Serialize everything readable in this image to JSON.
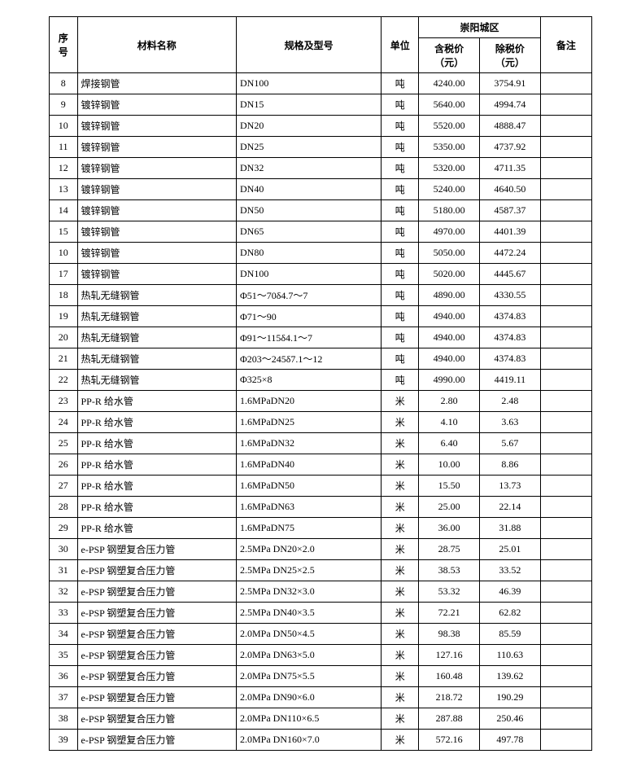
{
  "table": {
    "header": {
      "seq": "序号",
      "material": "材料名称",
      "spec": "规格及型号",
      "unit": "单位",
      "region": "崇阳城区",
      "price_incl": "含税价（元）",
      "price_excl": "除税价（元）",
      "remark": "备注"
    },
    "rows": [
      {
        "seq": "8",
        "name": "焊接钢管",
        "spec": "DN100",
        "unit": "吨",
        "incl": "4240.00",
        "excl": "3754.91",
        "remark": ""
      },
      {
        "seq": "9",
        "name": "镀锌钢管",
        "spec": "DN15",
        "unit": "吨",
        "incl": "5640.00",
        "excl": "4994.74",
        "remark": ""
      },
      {
        "seq": "10",
        "name": "镀锌钢管",
        "spec": "DN20",
        "unit": "吨",
        "incl": "5520.00",
        "excl": "4888.47",
        "remark": ""
      },
      {
        "seq": "11",
        "name": "镀锌钢管",
        "spec": "DN25",
        "unit": "吨",
        "incl": "5350.00",
        "excl": "4737.92",
        "remark": ""
      },
      {
        "seq": "12",
        "name": "镀锌钢管",
        "spec": "DN32",
        "unit": "吨",
        "incl": "5320.00",
        "excl": "4711.35",
        "remark": ""
      },
      {
        "seq": "13",
        "name": "镀锌钢管",
        "spec": "DN40",
        "unit": "吨",
        "incl": "5240.00",
        "excl": "4640.50",
        "remark": ""
      },
      {
        "seq": "14",
        "name": "镀锌钢管",
        "spec": "DN50",
        "unit": "吨",
        "incl": "5180.00",
        "excl": "4587.37",
        "remark": ""
      },
      {
        "seq": "15",
        "name": "镀锌钢管",
        "spec": "DN65",
        "unit": "吨",
        "incl": "4970.00",
        "excl": "4401.39",
        "remark": ""
      },
      {
        "seq": "10",
        "name": "镀锌钢管",
        "spec": "DN80",
        "unit": "吨",
        "incl": "5050.00",
        "excl": "4472.24",
        "remark": ""
      },
      {
        "seq": "17",
        "name": "镀锌钢管",
        "spec": "DN100",
        "unit": "吨",
        "incl": "5020.00",
        "excl": "4445.67",
        "remark": ""
      },
      {
        "seq": "18",
        "name": "热轧无缝钢管",
        "spec": "Φ51～70δ4.7～7",
        "unit": "吨",
        "incl": "4890.00",
        "excl": "4330.55",
        "remark": ""
      },
      {
        "seq": "19",
        "name": "热轧无缝钢管",
        "spec": "Φ71～90",
        "unit": "吨",
        "incl": "4940.00",
        "excl": "4374.83",
        "remark": ""
      },
      {
        "seq": "20",
        "name": "热轧无缝钢管",
        "spec": "Φ91～115δ4.1～7",
        "unit": "吨",
        "incl": "4940.00",
        "excl": "4374.83",
        "remark": ""
      },
      {
        "seq": "21",
        "name": "热轧无缝钢管",
        "spec": "Φ203～245δ7.1～12",
        "unit": "吨",
        "incl": "4940.00",
        "excl": "4374.83",
        "remark": ""
      },
      {
        "seq": "22",
        "name": "热轧无缝钢管",
        "spec": "Φ325×8",
        "unit": "吨",
        "incl": "4990.00",
        "excl": "4419.11",
        "remark": ""
      },
      {
        "seq": "23",
        "name": "PP-R 给水管",
        "spec": "1.6MPaDN20",
        "unit": "米",
        "incl": "2.80",
        "excl": "2.48",
        "remark": ""
      },
      {
        "seq": "24",
        "name": "PP-R 给水管",
        "spec": "1.6MPaDN25",
        "unit": "米",
        "incl": "4.10",
        "excl": "3.63",
        "remark": ""
      },
      {
        "seq": "25",
        "name": "PP-R 给水管",
        "spec": "1.6MPaDN32",
        "unit": "米",
        "incl": "6.40",
        "excl": "5.67",
        "remark": ""
      },
      {
        "seq": "26",
        "name": "PP-R 给水管",
        "spec": "1.6MPaDN40",
        "unit": "米",
        "incl": "10.00",
        "excl": "8.86",
        "remark": ""
      },
      {
        "seq": "27",
        "name": "PP-R 给水管",
        "spec": "1.6MPaDN50",
        "unit": "米",
        "incl": "15.50",
        "excl": "13.73",
        "remark": ""
      },
      {
        "seq": "28",
        "name": "PP-R 给水管",
        "spec": "1.6MPaDN63",
        "unit": "米",
        "incl": "25.00",
        "excl": "22.14",
        "remark": ""
      },
      {
        "seq": "29",
        "name": "PP-R 给水管",
        "spec": "1.6MPaDN75",
        "unit": "米",
        "incl": "36.00",
        "excl": "31.88",
        "remark": ""
      },
      {
        "seq": "30",
        "name": "e-PSP 钢塑复合压力管",
        "spec": "2.5MPa DN20×2.0",
        "unit": "米",
        "incl": "28.75",
        "excl": "25.01",
        "remark": ""
      },
      {
        "seq": "31",
        "name": "e-PSP 钢塑复合压力管",
        "spec": "2.5MPa DN25×2.5",
        "unit": "米",
        "incl": "38.53",
        "excl": "33.52",
        "remark": ""
      },
      {
        "seq": "32",
        "name": "e-PSP 钢塑复合压力管",
        "spec": "2.5MPa DN32×3.0",
        "unit": "米",
        "incl": "53.32",
        "excl": "46.39",
        "remark": ""
      },
      {
        "seq": "33",
        "name": "e-PSP 钢塑复合压力管",
        "spec": "2.5MPa DN40×3.5",
        "unit": "米",
        "incl": "72.21",
        "excl": "62.82",
        "remark": ""
      },
      {
        "seq": "34",
        "name": "e-PSP 钢塑复合压力管",
        "spec": "2.0MPa DN50×4.5",
        "unit": "米",
        "incl": "98.38",
        "excl": "85.59",
        "remark": ""
      },
      {
        "seq": "35",
        "name": "e-PSP 钢塑复合压力管",
        "spec": "2.0MPa DN63×5.0",
        "unit": "米",
        "incl": "127.16",
        "excl": "110.63",
        "remark": ""
      },
      {
        "seq": "36",
        "name": "e-PSP 钢塑复合压力管",
        "spec": "2.0MPa DN75×5.5",
        "unit": "米",
        "incl": "160.48",
        "excl": "139.62",
        "remark": ""
      },
      {
        "seq": "37",
        "name": "e-PSP 钢塑复合压力管",
        "spec": "2.0MPa DN90×6.0",
        "unit": "米",
        "incl": "218.72",
        "excl": "190.29",
        "remark": ""
      },
      {
        "seq": "38",
        "name": "e-PSP 钢塑复合压力管",
        "spec": "2.0MPa DN110×6.5",
        "unit": "米",
        "incl": "287.88",
        "excl": "250.46",
        "remark": ""
      },
      {
        "seq": "39",
        "name": "e-PSP 钢塑复合压力管",
        "spec": "2.0MPa DN160×7.0",
        "unit": "米",
        "incl": "572.16",
        "excl": "497.78",
        "remark": ""
      }
    ]
  }
}
